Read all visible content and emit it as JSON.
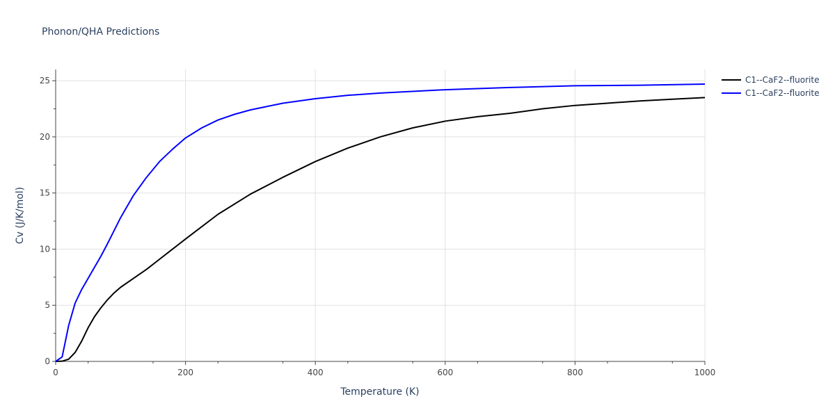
{
  "chart_data": {
    "type": "line",
    "title": "Phonon/QHA Predictions",
    "xlabel": "Temperature (K)",
    "ylabel": "Cv (J/K/mol)",
    "xlim": [
      0,
      1000
    ],
    "ylim": [
      0,
      26
    ],
    "x_ticks": [
      0,
      200,
      400,
      600,
      800,
      1000
    ],
    "y_ticks": [
      0,
      5,
      10,
      15,
      20,
      25
    ],
    "grid": true,
    "legend_position": "top-right",
    "series": [
      {
        "name": "C1--CaF2--fluorite",
        "color": "#000000",
        "x": [
          0,
          10,
          20,
          30,
          40,
          50,
          60,
          70,
          80,
          90,
          100,
          120,
          140,
          160,
          180,
          200,
          250,
          300,
          350,
          400,
          450,
          500,
          550,
          600,
          650,
          700,
          750,
          800,
          850,
          900,
          950,
          1000
        ],
        "y": [
          0,
          0.02,
          0.2,
          0.8,
          1.8,
          3.0,
          4.0,
          4.8,
          5.5,
          6.1,
          6.6,
          7.4,
          8.2,
          9.1,
          10.0,
          10.9,
          13.1,
          14.9,
          16.4,
          17.8,
          19.0,
          20.0,
          20.8,
          21.4,
          21.8,
          22.1,
          22.5,
          22.8,
          23.0,
          23.2,
          23.35,
          23.5
        ]
      },
      {
        "name": "C1--CaF2--fluorite",
        "color": "#0000ff",
        "x": [
          0,
          10,
          20,
          30,
          40,
          50,
          60,
          70,
          80,
          100,
          120,
          140,
          160,
          180,
          200,
          225,
          250,
          275,
          300,
          350,
          400,
          450,
          500,
          600,
          700,
          800,
          900,
          1000
        ],
        "y": [
          0,
          0.4,
          3.2,
          5.2,
          6.4,
          7.4,
          8.4,
          9.4,
          10.5,
          12.8,
          14.8,
          16.4,
          17.8,
          18.9,
          19.9,
          20.8,
          21.5,
          22.0,
          22.4,
          23.0,
          23.4,
          23.7,
          23.9,
          24.2,
          24.4,
          24.55,
          24.6,
          24.7
        ]
      }
    ]
  }
}
